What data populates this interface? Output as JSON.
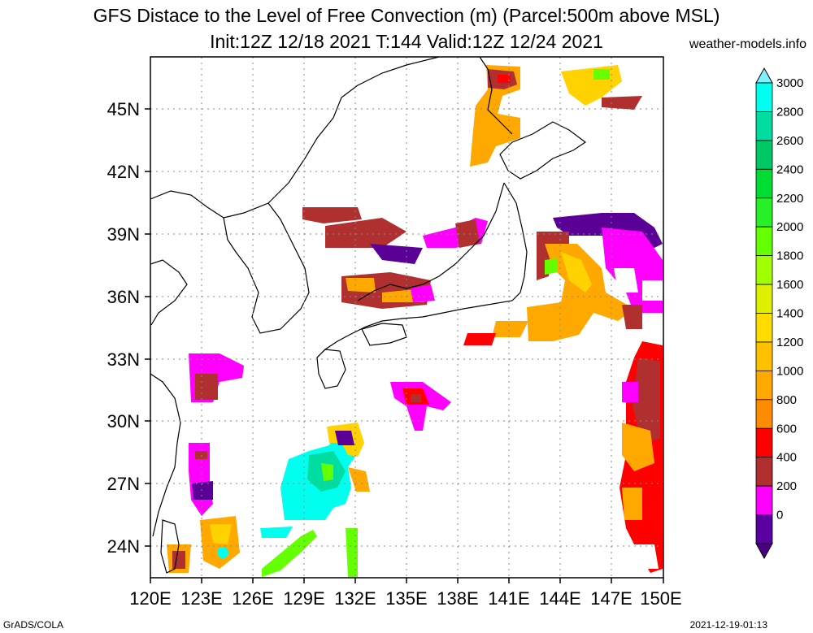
{
  "header": {
    "title_line1": "GFS Distace to the Level of Free Convection (m) (Parcel:500m above MSL)",
    "title_line2": "Init:12Z 12/18 2021 T:144 Valid:12Z 12/24 2021",
    "site": "weather-models.info"
  },
  "axes": {
    "lon_labels": [
      "120E",
      "123E",
      "126E",
      "129E",
      "132E",
      "135E",
      "138E",
      "141E",
      "144E",
      "147E",
      "150E"
    ],
    "lat_labels": [
      "45N",
      "42N",
      "39N",
      "36N",
      "33N",
      "30N",
      "27N",
      "24N"
    ]
  },
  "colorbar": {
    "labels": [
      "3000",
      "2800",
      "2600",
      "2400",
      "2200",
      "2000",
      "1800",
      "1600",
      "1400",
      "1200",
      "1000",
      "800",
      "600",
      "400",
      "200",
      "0"
    ],
    "colors": [
      "#00ffee",
      "#00dda0",
      "#00c864",
      "#00dc32",
      "#28f028",
      "#64ff00",
      "#a0ff00",
      "#dcf000",
      "#ffdc00",
      "#ffc000",
      "#ffa800",
      "#ff8c00",
      "#ff0000",
      "#b03030",
      "#ff00ff",
      "#5a00a0"
    ],
    "over_color": "#80f0ff",
    "under_color": "#4b0082"
  },
  "footer": {
    "left": "GrADS/COLA",
    "right": "2021-12-19-01:13"
  },
  "colors": {
    "purple": "#5a0096",
    "magenta": "#ff00ff",
    "brown": "#b03030",
    "red": "#ff0000",
    "orange": "#ffa800",
    "yellow": "#ffd200",
    "lime": "#64ff00",
    "cyan": "#00ffee"
  }
}
